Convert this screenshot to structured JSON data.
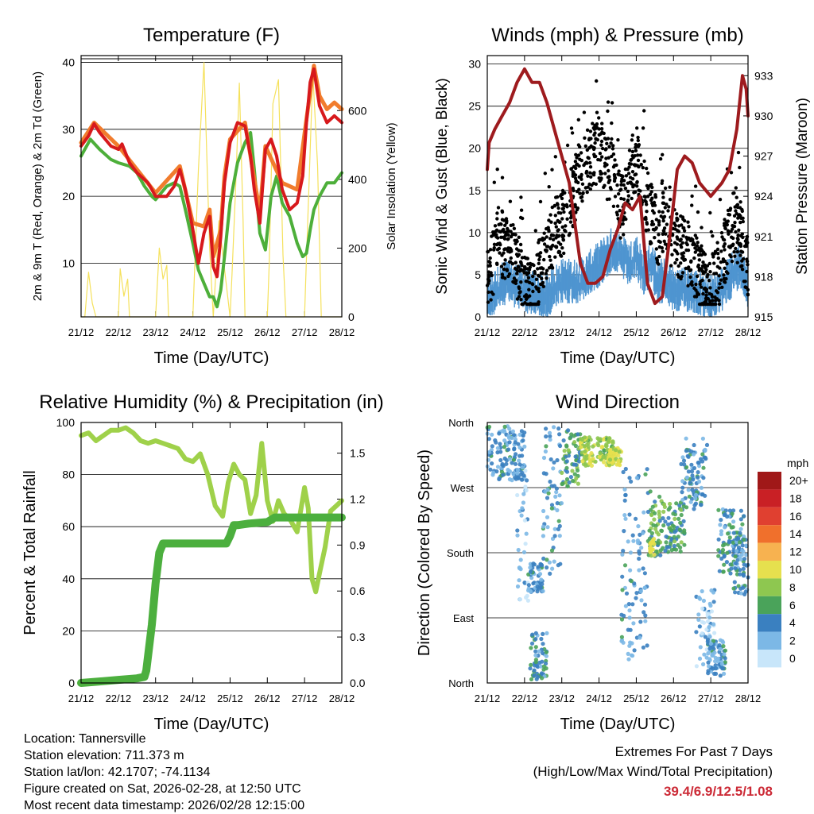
{
  "chart_data": [
    {
      "type": "line",
      "id": "temperature",
      "title": "Temperature (F)",
      "xlabel": "Time (Day/UTC)",
      "ylabel": "2m & 9m T (Red, Orange) & 2m Td (Green)",
      "y2label": "Solar Insolation (Yellow)",
      "x_ticks": [
        "21/12",
        "22/12",
        "23/12",
        "24/12",
        "25/12",
        "26/12",
        "27/12",
        "28/12"
      ],
      "xlim": [
        0,
        7
      ],
      "ylim": [
        2,
        41
      ],
      "y_ticks": [
        10,
        20,
        30,
        40
      ],
      "y2lim": [
        0,
        760
      ],
      "y2_ticks": [
        0,
        200,
        400,
        600
      ],
      "series": [
        {
          "name": "2m T",
          "color": "#d7191c",
          "axis": "left",
          "x": [
            0,
            0.2,
            0.35,
            0.5,
            0.8,
            1,
            1.1,
            1.3,
            1.5,
            1.8,
            2,
            2.3,
            2.5,
            2.65,
            2.8,
            3,
            3.15,
            3.3,
            3.45,
            3.55,
            3.65,
            3.75,
            3.85,
            4,
            4.2,
            4.4,
            4.55,
            4.65,
            4.8,
            4.95,
            5.1,
            5.25,
            5.4,
            5.6,
            5.8,
            5.95,
            6.05,
            6.15,
            6.25,
            6.4,
            6.6,
            6.8,
            7
          ],
          "values": [
            27.5,
            29,
            30.8,
            29.5,
            27.5,
            27,
            27.8,
            25,
            23.5,
            22,
            20,
            20,
            21.5,
            24,
            21,
            15,
            10,
            14.5,
            17,
            9.5,
            8,
            14,
            22,
            28,
            31,
            30.5,
            26,
            21,
            16,
            27,
            28.5,
            26,
            21,
            18,
            19,
            23,
            31,
            37,
            39,
            33.5,
            31,
            32,
            31
          ]
        },
        {
          "name": "9m T",
          "color": "#f17c2d",
          "axis": "left",
          "x": [
            0,
            0.35,
            1,
            1.5,
            2,
            2.65,
            3,
            3.3,
            3.45,
            3.55,
            3.75,
            3.85,
            4,
            4.4,
            4.8,
            4.95,
            5.4,
            5.8,
            6.05,
            6.25,
            6.4,
            6.6,
            6.8,
            7
          ],
          "values": [
            28,
            31,
            27.5,
            24,
            20.5,
            24.5,
            16,
            15.5,
            18,
            11,
            15,
            23,
            28.5,
            31,
            17.5,
            27.5,
            22,
            21,
            31.5,
            39.5,
            35,
            33,
            34,
            33
          ]
        },
        {
          "name": "2m Td",
          "color": "#4daf3a",
          "axis": "left",
          "x": [
            0,
            0.25,
            0.5,
            0.8,
            1,
            1.3,
            1.5,
            1.7,
            1.9,
            2,
            2.3,
            2.5,
            2.65,
            2.8,
            3,
            3.15,
            3.3,
            3.45,
            3.55,
            3.65,
            3.75,
            3.85,
            4,
            4.2,
            4.4,
            4.55,
            4.65,
            4.8,
            4.95,
            5.1,
            5.25,
            5.4,
            5.6,
            5.8,
            5.95,
            6.05,
            6.15,
            6.25,
            6.4,
            6.6,
            6.8,
            7
          ],
          "values": [
            26,
            28.5,
            27,
            25.5,
            25,
            24.5,
            23.5,
            21.5,
            20,
            19.5,
            21.5,
            22,
            21.5,
            18,
            13,
            9,
            7,
            5,
            5,
            3.5,
            6,
            11,
            19,
            25,
            28,
            29.5,
            24,
            14.5,
            12,
            20,
            23,
            19,
            17,
            13,
            11,
            11.5,
            15,
            18,
            20,
            22,
            22,
            23.5
          ]
        },
        {
          "name": "Solar Insolation",
          "color": "#f5e15c",
          "axis": "right",
          "x": [
            0,
            0.1,
            0.2,
            0.3,
            0.4,
            1,
            1.05,
            1.15,
            1.25,
            1.3,
            2,
            2.1,
            2.2,
            2.3,
            2.35,
            3,
            3.1,
            3.15,
            3.3,
            3.45,
            3.55,
            3.7,
            4,
            4.05,
            4.15,
            4.25,
            4.35,
            4.4,
            5,
            5.05,
            5.15,
            5.3,
            5.42,
            5.5,
            6,
            6.05,
            6.12,
            6.22,
            6.35,
            6.45,
            7
          ],
          "values": [
            0,
            0,
            130,
            40,
            0,
            0,
            140,
            60,
            110,
            0,
            0,
            200,
            110,
            150,
            0,
            0,
            290,
            430,
            740,
            200,
            0,
            280,
            0,
            120,
            380,
            680,
            280,
            0,
            0,
            150,
            620,
            690,
            180,
            0,
            0,
            170,
            390,
            710,
            440,
            0,
            0
          ]
        }
      ]
    },
    {
      "type": "line",
      "id": "winds",
      "title": "Winds (mph) & Pressure (mb)",
      "xlabel": "Time (Day/UTC)",
      "ylabel": "Sonic Wind & Gust (Blue, Black)",
      "y2label": "Station Pressure (Maroon)",
      "x_ticks": [
        "21/12",
        "22/12",
        "23/12",
        "24/12",
        "25/12",
        "26/12",
        "27/12",
        "28/12"
      ],
      "xlim": [
        0,
        7
      ],
      "ylim": [
        0,
        31
      ],
      "y_ticks": [
        0,
        5,
        10,
        15,
        20,
        25,
        30
      ],
      "y2lim": [
        915,
        934.5
      ],
      "y2_ticks": [
        915,
        918,
        921,
        924,
        927,
        930,
        933
      ],
      "series": [
        {
          "name": "Wind (mean)",
          "color": "#4f95d0",
          "axis": "left",
          "x": [
            0,
            0.5,
            1,
            1.5,
            2,
            2.5,
            3,
            3.2,
            3.4,
            3.6,
            3.8,
            4,
            4.2,
            4.4,
            4.6,
            4.8,
            5,
            5.5,
            6,
            6.3,
            6.6,
            6.8,
            7
          ],
          "values": [
            2,
            4,
            3,
            2,
            4,
            4,
            6,
            7,
            8,
            7,
            6,
            7,
            5,
            6,
            4,
            4,
            3,
            3,
            2,
            3,
            5,
            6,
            3
          ]
        },
        {
          "name": "Gust",
          "color": "#000000",
          "axis": "left",
          "x": [
            0,
            0.3,
            0.6,
            1,
            1.2,
            1.5,
            1.8,
            2,
            2.2,
            2.4,
            2.6,
            2.8,
            3,
            3.2,
            3.4,
            3.6,
            3.8,
            4,
            4.2,
            4.4,
            4.6,
            4.8,
            5,
            5.3,
            5.6,
            5.8,
            6,
            6.2,
            6.4,
            6.6,
            6.8,
            7
          ],
          "values": [
            4,
            9,
            8,
            4,
            2,
            7,
            10,
            11,
            13,
            16,
            18,
            19,
            20,
            18,
            16,
            12,
            17,
            19,
            15,
            12,
            10,
            12,
            9,
            8,
            6,
            4,
            3,
            5,
            8,
            11,
            10,
            6
          ]
        },
        {
          "name": "Station Pressure",
          "color": "#9e1b1e",
          "axis": "right",
          "x": [
            0,
            0.05,
            0.2,
            0.4,
            0.6,
            0.8,
            1,
            1.2,
            1.4,
            1.6,
            1.9,
            2.2,
            2.5,
            2.7,
            2.9,
            3.1,
            3.3,
            3.5,
            3.7,
            3.9,
            4.1,
            4.3,
            4.5,
            4.7,
            4.9,
            5.1,
            5.3,
            5.5,
            5.7,
            6,
            6.3,
            6.5,
            6.7,
            6.85,
            6.95,
            7
          ],
          "values": [
            926,
            928,
            929,
            930,
            931,
            932.5,
            933.5,
            932.5,
            932.5,
            931,
            928,
            925,
            919,
            917.5,
            917.5,
            918,
            920,
            921.5,
            923.5,
            923,
            924,
            917.5,
            916,
            916.5,
            921,
            926,
            927,
            926.5,
            925,
            924,
            925,
            926,
            929,
            933,
            932,
            930
          ]
        }
      ]
    },
    {
      "type": "line",
      "id": "humidity",
      "title": "Relative Humidity (%) & Precipitation (in)",
      "xlabel": "Time (Day/UTC)",
      "ylabel": "Percent & Total Rainfall",
      "x_ticks": [
        "21/12",
        "22/12",
        "23/12",
        "24/12",
        "25/12",
        "26/12",
        "27/12",
        "28/12"
      ],
      "xlim": [
        0,
        7
      ],
      "ylim": [
        0,
        100
      ],
      "y_ticks": [
        0,
        20,
        40,
        60,
        80,
        100
      ],
      "y2lim": [
        0,
        1.7
      ],
      "y2_ticks": [
        "0.0",
        "0.3",
        "0.6",
        "0.9",
        "1.2",
        "1.5"
      ],
      "series": [
        {
          "name": "Relative Humidity",
          "color": "#9fd14a",
          "axis": "left",
          "x": [
            0,
            0.2,
            0.4,
            0.6,
            0.8,
            1,
            1.2,
            1.4,
            1.6,
            1.8,
            2,
            2.2,
            2.4,
            2.6,
            2.8,
            3,
            3.2,
            3.4,
            3.6,
            3.8,
            3.95,
            4.1,
            4.25,
            4.4,
            4.55,
            4.7,
            4.85,
            5,
            5.15,
            5.3,
            5.45,
            5.6,
            5.8,
            6,
            6.1,
            6.2,
            6.3,
            6.4,
            6.55,
            6.7,
            6.85,
            7
          ],
          "values": [
            95,
            96,
            93,
            95,
            97,
            97,
            98,
            96,
            93,
            92,
            93,
            92,
            91,
            90,
            86,
            85,
            88,
            80,
            68,
            64,
            77,
            84,
            80,
            78,
            65,
            72,
            92,
            70,
            62,
            70,
            65,
            63,
            58,
            75,
            67,
            40,
            35,
            42,
            52,
            66,
            68,
            70
          ]
        },
        {
          "name": "Total Precipitation",
          "color": "#4caf3e",
          "axis": "right",
          "x": [
            0,
            0.5,
            1,
            1.5,
            1.7,
            1.75,
            1.9,
            2,
            2.1,
            2.2,
            2.3,
            2.5,
            3,
            3.5,
            3.9,
            4,
            4.1,
            4.2,
            4.5,
            5,
            5.2,
            5.5,
            6,
            6.5,
            7
          ],
          "values": [
            0,
            0.01,
            0.02,
            0.03,
            0.04,
            0.08,
            0.38,
            0.65,
            0.85,
            0.91,
            0.91,
            0.91,
            0.91,
            0.91,
            0.91,
            0.96,
            1.03,
            1.03,
            1.04,
            1.05,
            1.08,
            1.08,
            1.08,
            1.08,
            1.08
          ]
        }
      ]
    },
    {
      "type": "scatter",
      "id": "direction",
      "title": "Wind Direction",
      "xlabel": "Time (Day/UTC)",
      "ylabel": "Direction (Colored By Speed)",
      "x_ticks": [
        "21/12",
        "22/12",
        "23/12",
        "24/12",
        "25/12",
        "26/12",
        "27/12",
        "28/12"
      ],
      "xlim": [
        0,
        7
      ],
      "ylim": [
        0,
        360
      ],
      "y_ticks": [
        "North",
        "East",
        "South",
        "West",
        "North"
      ],
      "legend_title": "mph",
      "legend_labels": [
        "20+",
        "18",
        "16",
        "14",
        "12",
        "10",
        "8",
        "6",
        "4",
        "2",
        "0"
      ],
      "legend_colors": [
        "#a01818",
        "#c92025",
        "#e04030",
        "#f0702c",
        "#f7b250",
        "#e6e04e",
        "#8ec750",
        "#4aa35a",
        "#3a80c0",
        "#7cb8e6",
        "#c8e6fa"
      ],
      "clusters": [
        {
          "x0": 0,
          "x1": 1.0,
          "dir_min": 280,
          "dir_max": 355,
          "speed": 3
        },
        {
          "x0": 0.8,
          "x1": 1.1,
          "dir_min": 110,
          "dir_max": 300,
          "speed": 1
        },
        {
          "x0": 1.1,
          "x1": 1.5,
          "dir_min": 125,
          "dir_max": 165,
          "speed": 3
        },
        {
          "x0": 1.15,
          "x1": 1.6,
          "dir_min": 5,
          "dir_max": 70,
          "speed": 4
        },
        {
          "x0": 1.5,
          "x1": 2.0,
          "dir_min": 150,
          "dir_max": 355,
          "speed": 3
        },
        {
          "x0": 2.0,
          "x1": 2.5,
          "dir_min": 270,
          "dir_max": 350,
          "speed": 5
        },
        {
          "x0": 2.5,
          "x1": 3.4,
          "dir_min": 300,
          "dir_max": 340,
          "speed": 8
        },
        {
          "x0": 3.2,
          "x1": 3.6,
          "dir_min": 300,
          "dir_max": 325,
          "speed": 9
        },
        {
          "x0": 3.6,
          "x1": 4.3,
          "dir_min": 30,
          "dir_max": 300,
          "speed": 3
        },
        {
          "x0": 4.3,
          "x1": 4.7,
          "dir_min": 175,
          "dir_max": 265,
          "speed": 6
        },
        {
          "x0": 4.35,
          "x1": 4.5,
          "dir_min": 175,
          "dir_max": 200,
          "speed": 10
        },
        {
          "x0": 4.7,
          "x1": 5.3,
          "dir_min": 180,
          "dir_max": 250,
          "speed": 5
        },
        {
          "x0": 5.2,
          "x1": 5.9,
          "dir_min": 240,
          "dir_max": 340,
          "speed": 3
        },
        {
          "x0": 5.6,
          "x1": 6.1,
          "dir_min": 20,
          "dir_max": 130,
          "speed": 1
        },
        {
          "x0": 5.9,
          "x1": 6.4,
          "dir_min": 10,
          "dir_max": 60,
          "speed": 3
        },
        {
          "x0": 6.2,
          "x1": 6.9,
          "dir_min": 150,
          "dir_max": 240,
          "speed": 4
        },
        {
          "x0": 6.6,
          "x1": 7.0,
          "dir_min": 120,
          "dir_max": 200,
          "speed": 3
        }
      ]
    }
  ],
  "footer": {
    "location": "Location: Tannersville",
    "elevation": "Station elevation: 711.373 m",
    "latlon": "Station lat/lon: 42.1707; -74.1134",
    "created": "Figure created on Sat, 2026-02-28, at 12:50 UTC",
    "recent": "Most recent data timestamp: 2026/02/28 12:15:00"
  },
  "extremes": {
    "title": "Extremes For Past 7 Days",
    "subtitle": "(High/Low/Max Wind/Total Precipitation)",
    "values": "39.4/6.9/12.5/1.08"
  }
}
